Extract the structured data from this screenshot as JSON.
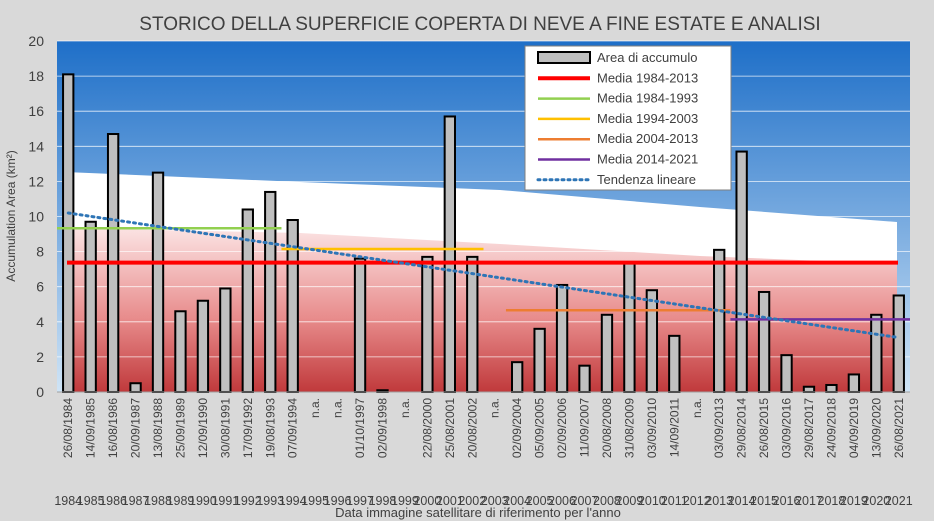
{
  "chart_data": {
    "type": "bar",
    "title": "STORICO DELLA SUPERFICIE COPERTA DI NEVE A FINE ESTATE E ANALISI",
    "xlabel": "Data immagine satellitare di riferimento per l'anno",
    "ylabel": "Accumulation Area (km²)",
    "ylim": [
      0,
      20
    ],
    "yticks": [
      0,
      2,
      4,
      6,
      8,
      10,
      12,
      14,
      16,
      18,
      20
    ],
    "years": [
      "1984",
      "1985",
      "1986",
      "1987",
      "1988",
      "1989",
      "1990",
      "1991",
      "1992",
      "1993",
      "1994",
      "1995",
      "1996",
      "1997",
      "1998",
      "1999",
      "2000",
      "2001",
      "2002",
      "2003",
      "2004",
      "2005",
      "2006",
      "2007",
      "2008",
      "2009",
      "2010",
      "2011",
      "2012",
      "2013",
      "2014",
      "2015",
      "2016",
      "2017",
      "2018",
      "2019",
      "2020",
      "2021"
    ],
    "dates": [
      "26/08/1984",
      "14/09/1985",
      "16/08/1986",
      "20/09/1987",
      "13/08/1988",
      "25/09/1989",
      "12/09/1990",
      "30/08/1991",
      "17/09/1992",
      "19/08/1993",
      "07/09/1994",
      "n.a.",
      "n.a.",
      "01/10/1997",
      "02/09/1998",
      "n.a.",
      "22/08/2000",
      "25/08/2001",
      "20/08/2002",
      "n.a.",
      "02/09/2004",
      "05/09/2005",
      "02/09/2006",
      "11/09/2007",
      "20/08/2008",
      "31/08/2009",
      "03/09/2010",
      "14/09/2011",
      "n.a.",
      "03/09/2013",
      "29/08/2014",
      "26/08/2015",
      "03/09/2016",
      "29/08/2017",
      "24/09/2018",
      "04/09/2019",
      "13/09/2020",
      "26/08/2021"
    ],
    "values": [
      18.1,
      9.7,
      14.7,
      0.5,
      12.5,
      4.6,
      5.2,
      5.9,
      10.4,
      11.4,
      9.8,
      null,
      null,
      7.6,
      0.1,
      null,
      7.7,
      15.7,
      7.7,
      null,
      1.7,
      3.6,
      6.1,
      1.5,
      4.4,
      7.4,
      5.8,
      3.2,
      null,
      8.1,
      13.7,
      5.7,
      2.1,
      0.3,
      0.4,
      1.0,
      4.4,
      5.5
    ],
    "averages": [
      {
        "name": "Media 1984-2013",
        "value": 7.37,
        "from": "1984",
        "to": "2021",
        "color": "#ff0000"
      },
      {
        "name": "Media 1984-1993",
        "value": 9.33,
        "from": "1984",
        "to": "1993",
        "color": "#92d050"
      },
      {
        "name": "Media 1994-2003",
        "value": 8.15,
        "from": "1994",
        "to": "2002",
        "color": "#ffc000"
      },
      {
        "name": "Media 2004-2013",
        "value": 4.66,
        "from": "2004",
        "to": "2013",
        "color": "#ed7d31"
      },
      {
        "name": "Media 2014-2021",
        "value": 4.14,
        "from": "2014",
        "to": "2021",
        "color": "#7030a0"
      }
    ],
    "trend": {
      "name": "Tendenza lineare",
      "from_value": 10.2,
      "to_value": 3.1,
      "color": "#2e75b6"
    },
    "bar_series_name": "Area di accumulo",
    "legend_position": "top-right",
    "grid": true
  }
}
